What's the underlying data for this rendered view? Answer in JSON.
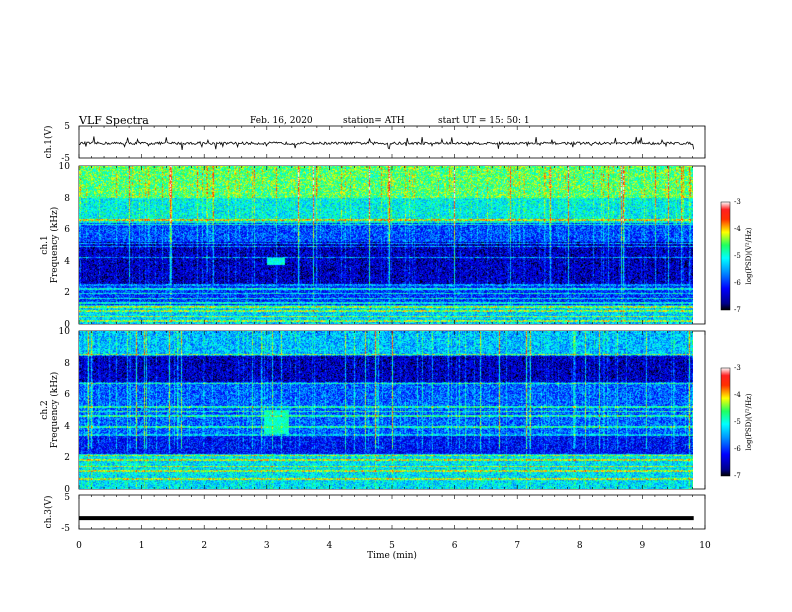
{
  "header": {
    "title": "VLF  Spectra",
    "date": "Feb. 16, 2020",
    "station": "station= ATH",
    "start": "start  UT  =    15: 50: 1"
  },
  "chart_data": {
    "type": "heatmap",
    "xlabel": "Time  (min)",
    "xlim": [
      0,
      10
    ],
    "xticks": [
      "0",
      "1",
      "2",
      "3",
      "4",
      "5",
      "6",
      "7",
      "8",
      "9",
      "10"
    ],
    "data_end_min": 9.82,
    "panels": [
      {
        "kind": "waveform",
        "ylabel": "ch.1(V)",
        "ylim": [
          -5,
          5
        ],
        "yticks": [
          "5",
          "-5"
        ],
        "baseline": -0.4,
        "noise_amplitude": 0.4,
        "spike_amplitude": 1.3
      },
      {
        "kind": "spectrogram",
        "ylabel_top": "ch.1",
        "ylabel": "Frequency  (kHz)",
        "ylim": [
          0,
          10
        ],
        "yticks": [
          "0",
          "2",
          "4",
          "6",
          "8",
          "10"
        ],
        "colorbar": {
          "label": "log(PSD)(V²/Hz)",
          "range": [
            -7,
            -3
          ],
          "ticks": [
            "-3",
            "-4",
            "-5",
            "-6",
            "-7"
          ]
        },
        "bands": [
          {
            "range_khz": [
              8,
              10
            ],
            "level": -4.6
          },
          {
            "range_khz": [
              6.4,
              8
            ],
            "level": -5.1
          },
          {
            "range_khz": [
              5.2,
              6.4
            ],
            "level": -5.9
          },
          {
            "range_khz": [
              2.4,
              5.2
            ],
            "level": -6.5
          },
          {
            "range_khz": [
              1.2,
              2.4
            ],
            "level": -6.0
          },
          {
            "range_khz": [
              0,
              1.2
            ],
            "level": -5.3
          }
        ],
        "lines_khz": [
          0.15,
          0.45,
          0.8,
          1.05,
          1.3,
          1.6,
          1.9,
          2.2,
          2.45,
          4.2,
          4.9,
          5.1,
          6.3,
          6.6
        ],
        "burst": {
          "t_min": [
            3.0,
            3.3
          ],
          "f_khz": [
            3.7,
            4.2
          ],
          "level": -5.0
        }
      },
      {
        "kind": "spectrogram",
        "ylabel_top": "ch.2",
        "ylabel": "Frequency  (kHz)",
        "ylim": [
          0,
          10
        ],
        "yticks": [
          "0",
          "2",
          "4",
          "6",
          "8",
          "10"
        ],
        "colorbar": {
          "label": "log(PSD)(V²/Hz)",
          "range": [
            -7,
            -3
          ],
          "ticks": [
            "-3",
            "-4",
            "-5",
            "-6",
            "-7"
          ]
        },
        "bands": [
          {
            "range_khz": [
              8.5,
              10
            ],
            "level": -5.4
          },
          {
            "range_khz": [
              6.8,
              8.5
            ],
            "level": -6.5
          },
          {
            "range_khz": [
              3.5,
              6.8
            ],
            "level": -5.8
          },
          {
            "range_khz": [
              2.2,
              3.5
            ],
            "level": -6.2
          },
          {
            "range_khz": [
              0,
              2.2
            ],
            "level": -5.2
          }
        ],
        "lines_khz": [
          0.6,
          1.1,
          1.4,
          1.8,
          2.1,
          3.4,
          3.9,
          4.6,
          4.9,
          5.2,
          6.7,
          8.5
        ],
        "burst": {
          "t_min": [
            2.95,
            3.35
          ],
          "f_khz": [
            3.5,
            5.0
          ],
          "level": -4.9
        }
      },
      {
        "kind": "waveform",
        "ylabel": "ch.3(V)",
        "ylim": [
          -5,
          5
        ],
        "yticks": [
          "5",
          "-5"
        ],
        "baseline": -1.8,
        "noise_amplitude": 0.0,
        "spike_amplitude": 0.0
      }
    ]
  }
}
